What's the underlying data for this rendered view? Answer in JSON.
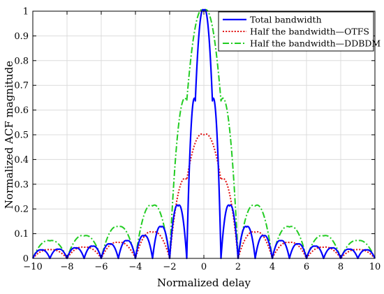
{
  "chart_data": {
    "type": "line",
    "xlabel": "Normalized delay",
    "ylabel": "Normalized ACF magnitude",
    "xlim": [
      -10,
      10
    ],
    "ylim": [
      0,
      1
    ],
    "xticks": [
      -10,
      -8,
      -6,
      -4,
      -2,
      0,
      2,
      4,
      6,
      8,
      10
    ],
    "xtick_labels": [
      "−10",
      "−8",
      "−6",
      "−4",
      "−2",
      "0",
      "2",
      "4",
      "6",
      "8",
      "10"
    ],
    "yticks": [
      0,
      0.1,
      0.2,
      0.3,
      0.4,
      0.5,
      0.6,
      0.7,
      0.8,
      0.9,
      1
    ],
    "ytick_labels": [
      "0",
      "0.1",
      "0.2",
      "0.3",
      "0.4",
      "0.5",
      "0.6",
      "0.7",
      "0.8",
      "0.9",
      "1"
    ],
    "grid": true,
    "legend_position": "top-right",
    "series": [
      {
        "name": "Total bandwidth",
        "color": "#0000ff",
        "style": "solid",
        "x": [
          -10,
          -9.5,
          -9,
          -8.5,
          -8,
          -7.5,
          -7,
          -6.5,
          -6,
          -5.5,
          -5,
          -4.5,
          -4,
          -3.5,
          -3,
          -2.5,
          -2,
          -1.5,
          -1,
          -0.5,
          0,
          0.5,
          1,
          1.5,
          2,
          2.5,
          3,
          3.5,
          4,
          4.5,
          5,
          5.5,
          6,
          6.5,
          7,
          7.5,
          8,
          8.5,
          9,
          9.5,
          10
        ],
        "y": [
          0.0,
          0.034,
          0.0,
          0.037,
          0.0,
          0.042,
          0.0,
          0.049,
          0.0,
          0.058,
          0.0,
          0.071,
          0.0,
          0.091,
          0.0,
          0.127,
          0.0,
          0.212,
          0.0,
          0.637,
          1.0,
          0.637,
          0.0,
          0.212,
          0.0,
          0.127,
          0.0,
          0.091,
          0.0,
          0.071,
          0.0,
          0.058,
          0.0,
          0.049,
          0.0,
          0.042,
          0.0,
          0.037,
          0.0,
          0.034,
          0.0
        ]
      },
      {
        "name": "Half the bandwidth—OTFS",
        "color": "#e01010",
        "style": "dotted",
        "x": [
          -10,
          -9,
          -8,
          -7,
          -6,
          -5,
          -4,
          -3,
          -2,
          -1,
          0,
          1,
          2,
          3,
          4,
          5,
          6,
          7,
          8,
          9,
          10
        ],
        "y": [
          0.0,
          0.035,
          0.0,
          0.045,
          0.0,
          0.064,
          0.0,
          0.106,
          0.0,
          0.318,
          0.5,
          0.318,
          0.0,
          0.106,
          0.0,
          0.064,
          0.0,
          0.045,
          0.0,
          0.035,
          0.0
        ]
      },
      {
        "name": "Half the bandwidth—DDBDM",
        "color": "#22cc22",
        "style": "dashdot",
        "x": [
          -10,
          -9,
          -8,
          -7,
          -6,
          -5,
          -4,
          -3,
          -2,
          -1,
          0,
          1,
          2,
          3,
          4,
          5,
          6,
          7,
          8,
          9,
          10
        ],
        "y": [
          0.0,
          0.071,
          0.0,
          0.091,
          0.0,
          0.127,
          0.0,
          0.212,
          0.0,
          0.637,
          1.0,
          0.637,
          0.0,
          0.212,
          0.0,
          0.127,
          0.0,
          0.091,
          0.0,
          0.071,
          0.0
        ]
      }
    ]
  }
}
